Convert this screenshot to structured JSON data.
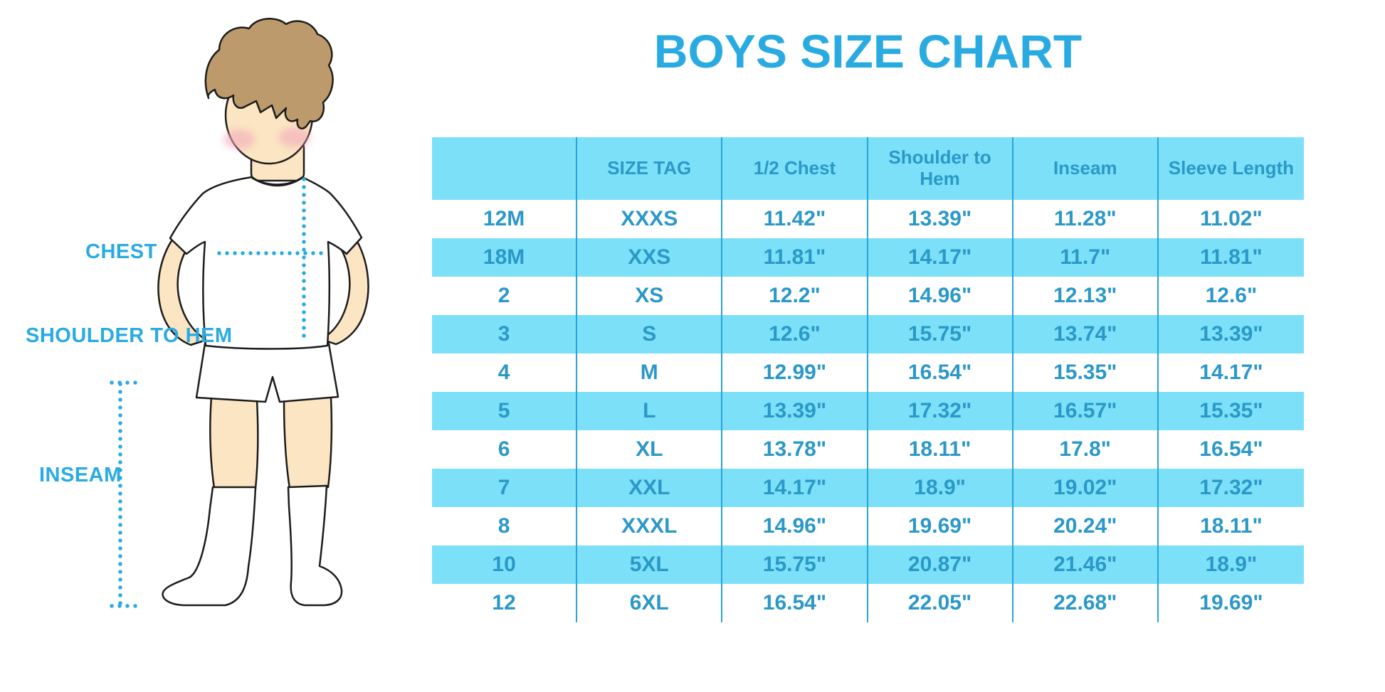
{
  "title": "BOYS SIZE CHART",
  "figure": {
    "chest_label": "CHEST",
    "shoulder_label": "SHOULDER TO HEM",
    "inseam_label": "INSEAM"
  },
  "colors": {
    "accent": "#29ABE2",
    "band": "#7BE0F8",
    "table_text": "#2B98C8",
    "separator": "#2AA4D8",
    "skin": "#FBE5C2",
    "hair": "#BD9A6C",
    "blush": "#F3A9BB",
    "outline": "#1C1C1C"
  },
  "chart_data": {
    "type": "table",
    "title": "BOYS SIZE CHART",
    "columns": [
      "",
      "SIZE TAG",
      "1/2 Chest",
      "Shoulder to Hem",
      "Inseam",
      "Sleeve Length"
    ],
    "rows": [
      [
        "12M",
        "XXXS",
        "11.42\"",
        "13.39\"",
        "11.28\"",
        "11.02\""
      ],
      [
        "18M",
        "XXS",
        "11.81\"",
        "14.17\"",
        "11.7\"",
        "11.81\""
      ],
      [
        "2",
        "XS",
        "12.2\"",
        "14.96\"",
        "12.13\"",
        "12.6\""
      ],
      [
        "3",
        "S",
        "12.6\"",
        "15.75\"",
        "13.74\"",
        "13.39\""
      ],
      [
        "4",
        "M",
        "12.99\"",
        "16.54\"",
        "15.35\"",
        "14.17\""
      ],
      [
        "5",
        "L",
        "13.39\"",
        "17.32\"",
        "16.57\"",
        "15.35\""
      ],
      [
        "6",
        "XL",
        "13.78\"",
        "18.11\"",
        "17.8\"",
        "16.54\""
      ],
      [
        "7",
        "XXL",
        "14.17\"",
        "18.9\"",
        "19.02\"",
        "17.32\""
      ],
      [
        "8",
        "XXXL",
        "14.96\"",
        "19.69\"",
        "20.24\"",
        "18.11\""
      ],
      [
        "10",
        "5XL",
        "15.75\"",
        "20.87\"",
        "21.46\"",
        "18.9\""
      ],
      [
        "12",
        "6XL",
        "16.54\"",
        "22.05\"",
        "22.68\"",
        "19.69\""
      ]
    ]
  }
}
